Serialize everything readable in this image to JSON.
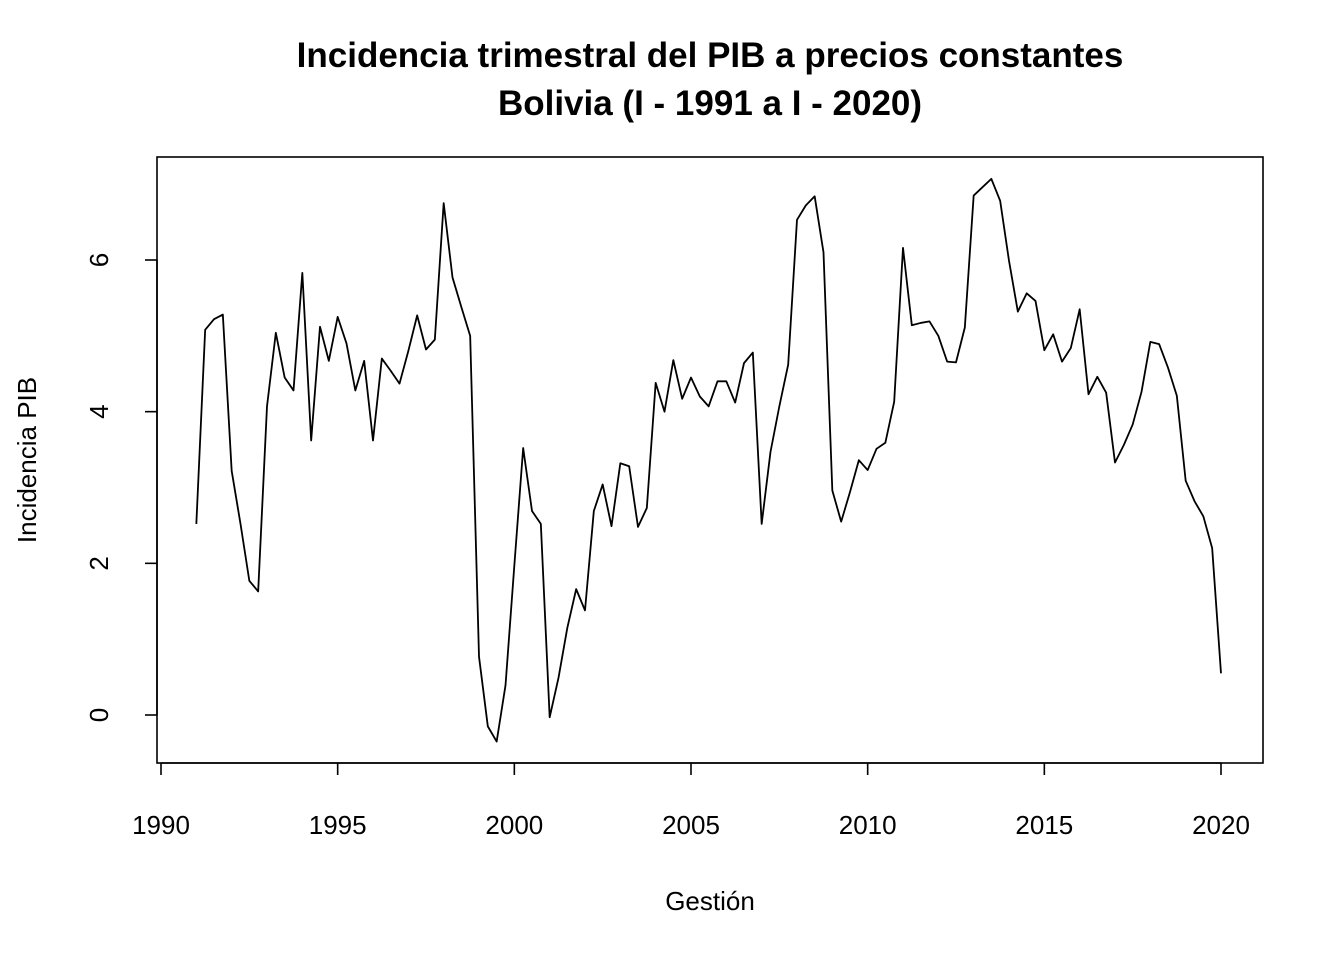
{
  "chart_data": {
    "type": "line",
    "title_lines": [
      "Incidencia trimestral del PIB a precios constantes",
      "Bolivia (I - 1991 a I - 2020)"
    ],
    "xlabel": "Gestión",
    "ylabel": "Incidencia PIB",
    "xlim": [
      1990,
      2020
    ],
    "ylim": [
      -0.6,
      7.4
    ],
    "x_ticks": [
      1990,
      1995,
      2000,
      2005,
      2010,
      2015,
      2020
    ],
    "y_ticks": [
      0,
      2,
      4,
      6
    ],
    "x_start": 1991.0,
    "x_step": 0.25,
    "series": [
      {
        "color": "#000000",
        "values": [
          2.52,
          5.08,
          5.22,
          5.28,
          3.22,
          2.52,
          1.77,
          1.63,
          4.07,
          5.04,
          4.45,
          4.28,
          5.83,
          3.62,
          5.12,
          4.67,
          5.25,
          4.9,
          4.28,
          4.67,
          3.62,
          4.7,
          4.54,
          4.37,
          4.8,
          5.27,
          4.82,
          4.95,
          6.75,
          5.77,
          5.38,
          5.0,
          0.77,
          -0.15,
          -0.35,
          0.39,
          1.97,
          3.52,
          2.69,
          2.52,
          -0.03,
          0.49,
          1.15,
          1.66,
          1.38,
          2.69,
          3.04,
          2.49,
          3.32,
          3.28,
          2.48,
          2.73,
          4.38,
          4.0,
          4.68,
          4.17,
          4.45,
          4.2,
          4.07,
          4.4,
          4.4,
          4.12,
          4.64,
          4.78,
          2.52,
          3.47,
          4.07,
          4.62,
          6.53,
          6.72,
          6.84,
          6.1,
          2.96,
          2.55,
          2.94,
          3.36,
          3.23,
          3.51,
          3.59,
          4.13,
          6.16,
          5.14,
          5.17,
          5.19,
          5.0,
          4.66,
          4.65,
          5.11,
          6.85,
          6.96,
          7.07,
          6.78,
          5.99,
          5.32,
          5.56,
          5.46,
          4.81,
          5.02,
          4.66,
          4.84,
          5.35,
          4.23,
          4.46,
          4.25,
          3.33,
          3.56,
          3.83,
          4.26,
          4.92,
          4.89,
          4.58,
          4.21,
          3.09,
          2.82,
          2.62,
          2.2,
          0.55
        ]
      }
    ],
    "grid": false,
    "legend": "none"
  }
}
